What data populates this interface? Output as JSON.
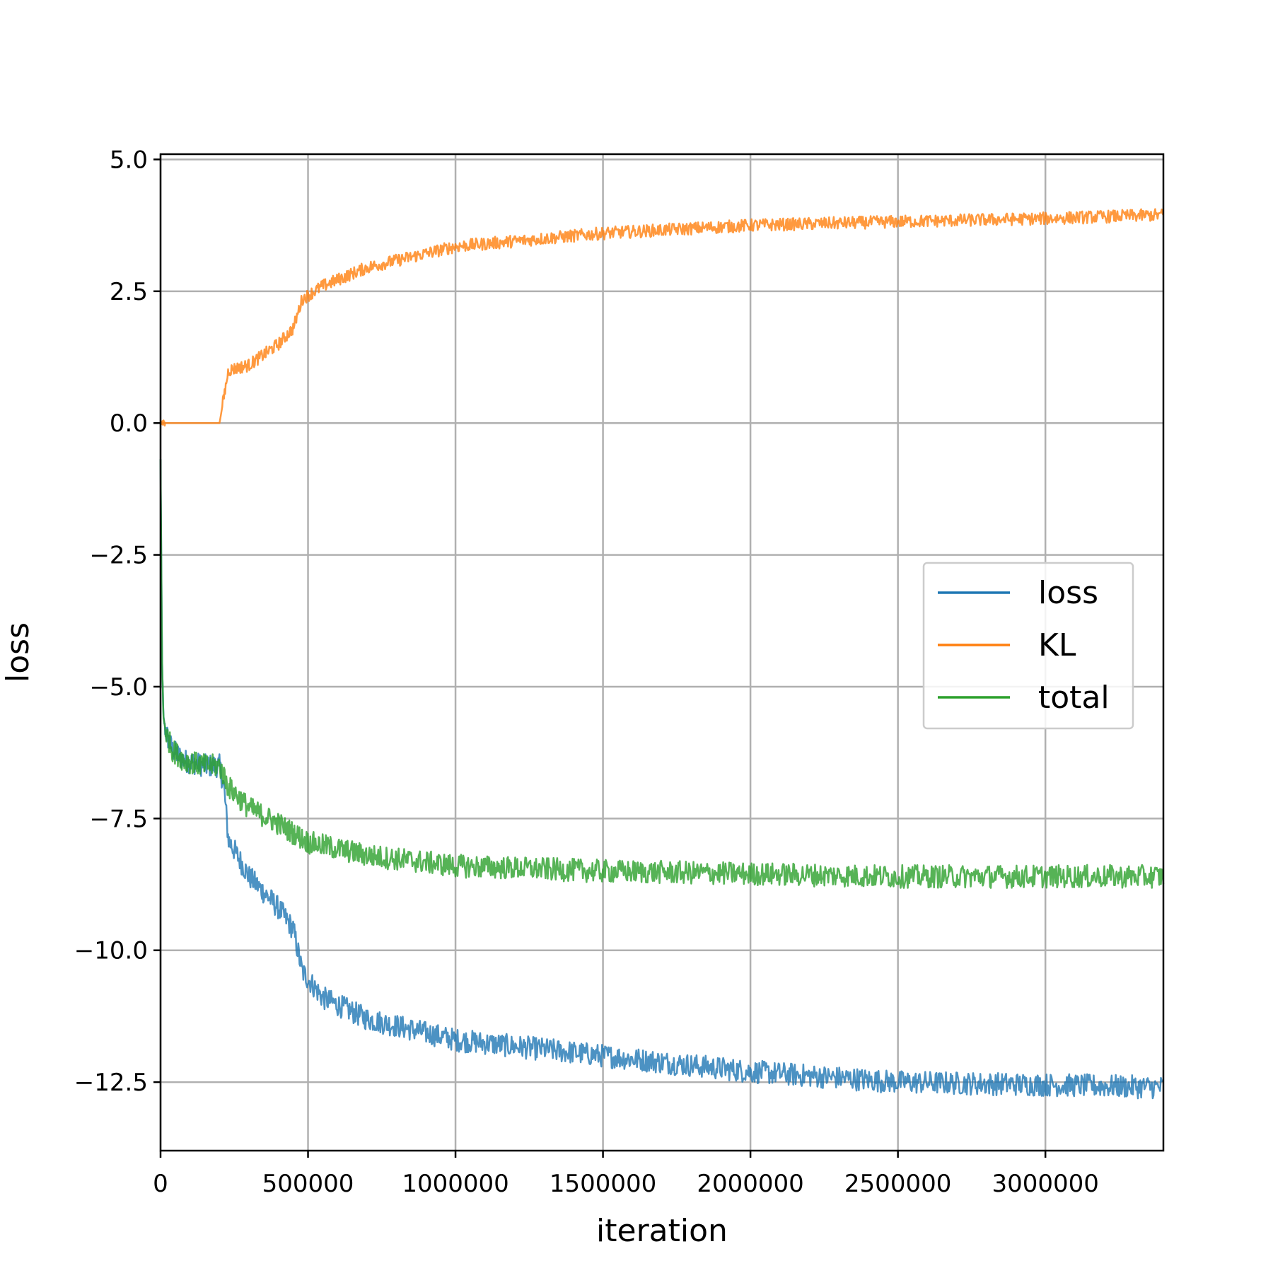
{
  "chart_data": {
    "type": "line",
    "xlabel": "iteration",
    "ylabel": "loss",
    "xlim": [
      0,
      3400000
    ],
    "ylim": [
      -13.8,
      5.1
    ],
    "xticks": [
      0,
      500000,
      1000000,
      1500000,
      2000000,
      2500000,
      3000000
    ],
    "xtick_labels": [
      "0",
      "500000",
      "1000000",
      "1500000",
      "2000000",
      "2500000",
      "3000000"
    ],
    "yticks": [
      5.0,
      2.5,
      0.0,
      -2.5,
      -5.0,
      -7.5,
      -10.0,
      -12.5
    ],
    "ytick_labels": [
      "5.0",
      "2.5",
      "0.0",
      "−2.5",
      "−5.0",
      "−7.5",
      "−10.0",
      "−12.5"
    ],
    "grid": true,
    "legend_position": "center-right",
    "series": [
      {
        "name": "loss",
        "color": "#1f77b4",
        "x": [
          0,
          5000,
          10000,
          20000,
          40000,
          80000,
          150000,
          200000,
          215000,
          230000,
          300000,
          400000,
          450000,
          480000,
          550000,
          700000,
          1000000,
          1500000,
          2000000,
          2500000,
          3000000,
          3400000
        ],
        "y": [
          -0.7,
          -4.5,
          -5.6,
          -5.9,
          -6.2,
          -6.4,
          -6.5,
          -6.5,
          -6.9,
          -7.9,
          -8.6,
          -9.2,
          -9.6,
          -10.4,
          -10.9,
          -11.3,
          -11.7,
          -12.0,
          -12.3,
          -12.5,
          -12.55,
          -12.6
        ]
      },
      {
        "name": "KL",
        "color": "#ff7f0e",
        "x": [
          0,
          200000,
          215000,
          230000,
          300000,
          400000,
          450000,
          480000,
          550000,
          700000,
          1000000,
          1500000,
          2000000,
          2500000,
          3000000,
          3400000
        ],
        "y": [
          0.0,
          0.0,
          0.5,
          1.0,
          1.1,
          1.5,
          1.8,
          2.35,
          2.6,
          2.95,
          3.35,
          3.6,
          3.75,
          3.82,
          3.88,
          3.95
        ]
      },
      {
        "name": "total",
        "color": "#2ca02c",
        "x": [
          0,
          5000,
          10000,
          20000,
          40000,
          80000,
          150000,
          200000,
          230000,
          300000,
          400000,
          500000,
          700000,
          1000000,
          1500000,
          2000000,
          2500000,
          3000000,
          3400000
        ],
        "y": [
          -0.7,
          -4.5,
          -5.6,
          -5.9,
          -6.2,
          -6.4,
          -6.5,
          -6.5,
          -6.9,
          -7.3,
          -7.6,
          -7.95,
          -8.2,
          -8.4,
          -8.5,
          -8.55,
          -8.6,
          -8.6,
          -8.6
        ]
      }
    ]
  }
}
